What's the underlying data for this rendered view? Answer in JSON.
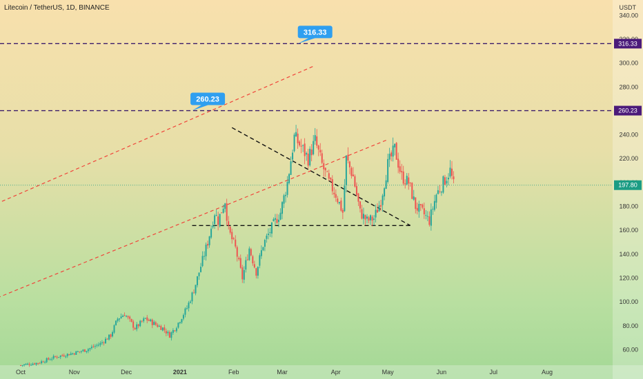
{
  "chart_title": "Litecoin / TetherUS, 1D, BINANCE",
  "colors": {
    "up": "#26a69a",
    "down": "#ef5350",
    "channel": "#f0443a",
    "triangle": "#111111",
    "level_line": "#3a1b6b",
    "callout": "#2f9ff0",
    "level_tag": "#4b1a7a",
    "last_price_tag": "#1b9c84"
  },
  "chart_data": {
    "type": "candlestick",
    "title": "Litecoin / TetherUS, 1D, BINANCE",
    "ylabel": "USDT",
    "ylim": [
      47,
      350
    ],
    "y_ticks": [
      60,
      80,
      100,
      120,
      140,
      160,
      180,
      200,
      220,
      240,
      260,
      280,
      300,
      320,
      340
    ],
    "x_ticks": [
      "Oct",
      "Nov",
      "Dec",
      "2021",
      "Feb",
      "Mar",
      "Apr",
      "May",
      "Jun",
      "Jul",
      "Aug"
    ],
    "levels": [
      {
        "value": 316.33,
        "label": "316.33"
      },
      {
        "value": 260.23,
        "label": "260.23"
      }
    ],
    "last_price": {
      "value": 197.8,
      "label": "197.80"
    },
    "anchors": [
      {
        "label": "Oct",
        "day": 0,
        "date": "2020-10-01"
      },
      {
        "label": "Nov",
        "day": 31,
        "date": "2020-11-01"
      },
      {
        "label": "Dec",
        "day": 61,
        "date": "2020-12-01"
      },
      {
        "label": "2021",
        "day": 92,
        "date": "2021-01-01"
      },
      {
        "label": "Feb",
        "day": 123,
        "date": "2021-02-01"
      },
      {
        "label": "Mar",
        "day": 151,
        "date": "2021-03-01"
      },
      {
        "label": "Apr",
        "day": 182,
        "date": "2021-04-01"
      },
      {
        "label": "May",
        "day": 212,
        "date": "2021-05-01"
      },
      {
        "label": "Jun",
        "day": 243,
        "date": "2021-06-01"
      },
      {
        "label": "Jul",
        "day": 273,
        "date": "2021-07-01"
      },
      {
        "label": "Aug",
        "day": 304,
        "date": "2021-08-01"
      }
    ],
    "closes": [
      [
        0,
        47
      ],
      [
        10,
        49
      ],
      [
        20,
        54
      ],
      [
        30,
        57
      ],
      [
        38,
        60
      ],
      [
        46,
        65
      ],
      [
        52,
        72
      ],
      [
        56,
        86
      ],
      [
        60,
        90
      ],
      [
        66,
        78
      ],
      [
        72,
        86
      ],
      [
        78,
        81
      ],
      [
        82,
        78
      ],
      [
        86,
        72
      ],
      [
        90,
        80
      ],
      [
        96,
        95
      ],
      [
        100,
        110
      ],
      [
        104,
        130
      ],
      [
        108,
        150
      ],
      [
        112,
        175
      ],
      [
        114,
        168
      ],
      [
        118,
        185
      ],
      [
        120,
        160
      ],
      [
        124,
        145
      ],
      [
        128,
        120
      ],
      [
        132,
        145
      ],
      [
        136,
        125
      ],
      [
        140,
        148
      ],
      [
        146,
        165
      ],
      [
        150,
        175
      ],
      [
        154,
        200
      ],
      [
        158,
        238
      ],
      [
        162,
        230
      ],
      [
        166,
        220
      ],
      [
        170,
        235
      ],
      [
        174,
        215
      ],
      [
        178,
        200
      ],
      [
        182,
        190
      ],
      [
        186,
        175
      ],
      [
        188,
        220
      ],
      [
        192,
        205
      ],
      [
        196,
        175
      ],
      [
        200,
        168
      ],
      [
        204,
        170
      ],
      [
        208,
        185
      ],
      [
        212,
        215
      ],
      [
        216,
        228
      ],
      [
        220,
        205
      ],
      [
        224,
        200
      ],
      [
        228,
        180
      ],
      [
        232,
        175
      ],
      [
        236,
        168
      ],
      [
        240,
        190
      ],
      [
        244,
        200
      ],
      [
        248,
        210
      ],
      [
        250,
        197.8
      ]
    ],
    "drawings": {
      "channel_upper": {
        "from": [
          -70,
          147
        ],
        "to": [
          170,
          298
        ]
      },
      "channel_lower": {
        "from": [
          -50,
          82
        ],
        "to": [
          212,
          236
        ]
      },
      "triangle_top": {
        "from": [
          122,
          246
        ],
        "to": [
          225,
          164
        ]
      },
      "triangle_base": {
        "from": [
          99,
          164
        ],
        "to": [
          225,
          164
        ]
      },
      "callouts": [
        {
          "label": "316.33",
          "day": 170,
          "value": 316.33,
          "tip_day": 160,
          "tip_value": 316.33
        },
        {
          "label": "260.23",
          "day": 108,
          "value": 260.23,
          "tip_day": 99,
          "tip_value": 260.23
        }
      ]
    }
  }
}
